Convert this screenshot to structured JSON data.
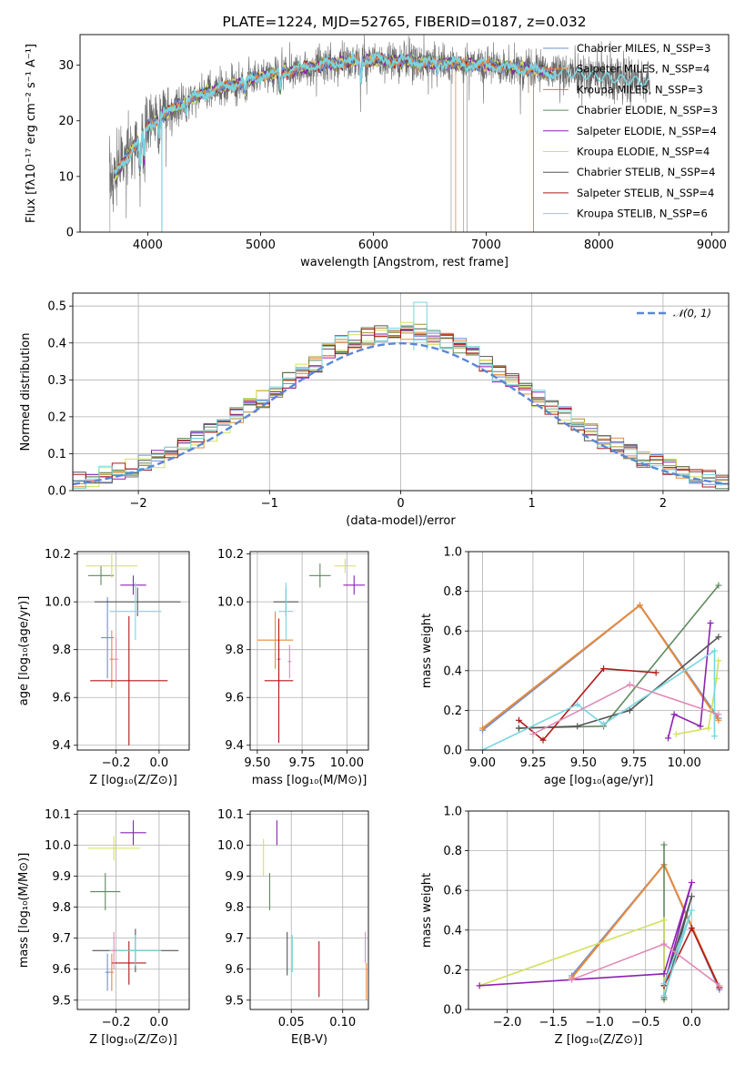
{
  "colors": [
    "#6f8fd6",
    "#e88a3a",
    "#a7912e",
    "#5e8a5e",
    "#8e22b0",
    "#d3e05b",
    "#555555",
    "#b21818",
    "#78d6e0",
    "#e08ab5"
  ],
  "chart_data": [
    {
      "id": "spectrum",
      "type": "line",
      "title": "PLATE=1224, MJD=52765, FIBERID=0187, z=0.032",
      "xlabel": "wavelength [Angstrom, rest frame]",
      "ylabel": "Flux [fλ10⁻¹⁷ erg cm⁻² s⁻¹ A⁻¹]",
      "xlim": [
        3400,
        9150
      ],
      "ylim": [
        0,
        35.5
      ],
      "xticks": [
        4000,
        5000,
        6000,
        7000,
        8000,
        9000
      ],
      "yticks": [
        0,
        10,
        20,
        30
      ],
      "legend_position": "upper-right",
      "grid": false,
      "continuum": {
        "x": [
          3660,
          3800,
          4000,
          4200,
          4500,
          5000,
          5500,
          6000,
          6500,
          7000,
          7500,
          7650
        ],
        "y": [
          9,
          13,
          19,
          22,
          25,
          28,
          30,
          31,
          30.5,
          30,
          29,
          28
        ]
      },
      "series": [
        {
          "name": "Chabrier MILES, N_SSP=3"
        },
        {
          "name": "Salpeter MILES, N_SSP=4"
        },
        {
          "name": "Kroupa MILES, N_SSP=3"
        },
        {
          "name": "Chabrier ELODIE, N_SSP=3"
        },
        {
          "name": "Salpeter ELODIE, N_SSP=4"
        },
        {
          "name": "Kroupa ELODIE, N_SSP=4"
        },
        {
          "name": "Chabrier STELIB, N_SSP=4"
        },
        {
          "name": "Salpeter STELIB, N_SSP=4"
        },
        {
          "name": "Kroupa STELIB, N_SSP=6"
        }
      ]
    },
    {
      "id": "residuals",
      "type": "histogram",
      "xlabel": "(data-model)/error",
      "ylabel": "Normed distribution",
      "xlim": [
        -2.5,
        2.5
      ],
      "ylim": [
        0,
        0.535
      ],
      "xticks": [
        -2,
        -1,
        0,
        1,
        2
      ],
      "yticks": [
        0.0,
        0.1,
        0.2,
        0.3,
        0.4,
        0.5
      ],
      "grid": true,
      "legend": {
        "label": "𝒩(0, 1)",
        "position": "upper-right"
      },
      "bin_width": 0.1
    },
    {
      "id": "age-vs-Z",
      "type": "errorbar",
      "xlabel": "Z [log₁₀(Z/Z⊙)]",
      "ylabel": "age  [log₁₀(age/yr)]",
      "xlim": [
        -0.38,
        0.14
      ],
      "ylim": [
        9.38,
        10.21
      ],
      "xticks": [
        -0.2,
        0.0
      ],
      "yticks": [
        9.4,
        9.6,
        9.8,
        10.0,
        10.2
      ],
      "points": [
        {
          "x": -0.24,
          "y": 9.85,
          "xerr": 0.03,
          "yerr": 0.17,
          "c": 0
        },
        {
          "x": -0.22,
          "y": 9.76,
          "xerr": 0.01,
          "yerr": 0.12,
          "c": 1
        },
        {
          "x": -0.27,
          "y": 10.11,
          "xerr": 0.06,
          "yerr": 0.04,
          "c": 3
        },
        {
          "x": -0.12,
          "y": 10.07,
          "xerr": 0.06,
          "yerr": 0.04,
          "c": 4
        },
        {
          "x": -0.22,
          "y": 10.15,
          "xerr": 0.12,
          "yerr": 0.05,
          "c": 5
        },
        {
          "x": -0.1,
          "y": 10.0,
          "xerr": 0.2,
          "yerr": 0.06,
          "c": 6
        },
        {
          "x": -0.14,
          "y": 9.67,
          "xerr": 0.18,
          "yerr": 0.27,
          "c": 7
        },
        {
          "x": -0.11,
          "y": 9.96,
          "xerr": 0.12,
          "yerr": 0.12,
          "c": 8
        },
        {
          "x": -0.2,
          "y": 9.76,
          "xerr": 0.01,
          "yerr": 0.09,
          "c": 9
        }
      ]
    },
    {
      "id": "age-vs-mass",
      "type": "errorbar",
      "xlabel": "mass [log₁₀(M/M⊙)]",
      "ylabel": "",
      "xlim": [
        9.46,
        10.12
      ],
      "ylim": [
        9.38,
        10.21
      ],
      "xticks": [
        9.5,
        9.75,
        10.0
      ],
      "yticks": [
        9.4,
        9.6,
        9.8,
        10.0,
        10.2
      ],
      "points": [
        {
          "x": 9.6,
          "y": 9.84,
          "xerr": 0.1,
          "yerr": 0.12,
          "c": 1
        },
        {
          "x": 9.62,
          "y": 9.76,
          "xerr": 0.01,
          "yerr": 0.12,
          "c": 0
        },
        {
          "x": 9.85,
          "y": 10.11,
          "xerr": 0.06,
          "yerr": 0.05,
          "c": 3
        },
        {
          "x": 10.04,
          "y": 10.07,
          "xerr": 0.06,
          "yerr": 0.04,
          "c": 4
        },
        {
          "x": 9.99,
          "y": 10.15,
          "xerr": 0.06,
          "yerr": 0.03,
          "c": 5
        },
        {
          "x": 9.66,
          "y": 10.0,
          "xerr": 0.07,
          "yerr": 0.06,
          "c": 6
        },
        {
          "x": 9.62,
          "y": 9.67,
          "xerr": 0.08,
          "yerr": 0.26,
          "c": 7
        },
        {
          "x": 9.66,
          "y": 9.96,
          "xerr": 0.04,
          "yerr": 0.12,
          "c": 8
        },
        {
          "x": 9.68,
          "y": 9.75,
          "xerr": 0.01,
          "yerr": 0.07,
          "c": 9
        }
      ]
    },
    {
      "id": "weights-vs-age",
      "type": "line",
      "xlabel": "age  [log₁₀(age/yr)]",
      "ylabel": "mass weight",
      "xlim": [
        8.93,
        10.22
      ],
      "ylim": [
        0,
        1.0
      ],
      "xticks": [
        9.0,
        9.25,
        9.5,
        9.75,
        10.0
      ],
      "yticks": [
        0.0,
        0.2,
        0.4,
        0.6,
        0.8,
        1.0
      ],
      "series": [
        {
          "c": 0,
          "x": [
            9.0,
            9.78,
            10.17
          ],
          "y": [
            0.1,
            0.73,
            0.16
          ]
        },
        {
          "c": 1,
          "x": [
            9.0,
            9.78,
            10.17
          ],
          "y": [
            0.11,
            0.73,
            0.15
          ]
        },
        {
          "c": 3,
          "x": [
            9.18,
            9.6,
            10.17
          ],
          "y": [
            0.11,
            0.12,
            0.83
          ]
        },
        {
          "c": 4,
          "x": [
            9.92,
            9.95,
            10.08,
            10.13
          ],
          "y": [
            0.06,
            0.18,
            0.12,
            0.64
          ]
        },
        {
          "c": 5,
          "x": [
            9.96,
            10.12,
            10.16,
            10.17
          ],
          "y": [
            0.08,
            0.11,
            0.36,
            0.45
          ]
        },
        {
          "c": 6,
          "x": [
            9.18,
            9.47,
            9.73,
            10.17
          ],
          "y": [
            0.11,
            0.12,
            0.2,
            0.57
          ]
        },
        {
          "c": 7,
          "x": [
            9.18,
            9.3,
            9.6,
            9.86
          ],
          "y": [
            0.15,
            0.05,
            0.41,
            0.39
          ]
        },
        {
          "c": 8,
          "x": [
            9.0,
            9.47,
            9.6,
            10.15,
            10.15
          ],
          "y": [
            0.0,
            0.23,
            0.13,
            0.5,
            0.07
          ]
        },
        {
          "c": 9,
          "x": [
            9.25,
            9.73,
            10.17
          ],
          "y": [
            0.08,
            0.33,
            0.18
          ]
        }
      ]
    },
    {
      "id": "mass-vs-Z",
      "type": "errorbar",
      "xlabel": "Z [log₁₀(Z/Z⊙)]",
      "ylabel": "mass [log₁₀(M/M⊙)]",
      "xlim": [
        -0.38,
        0.14
      ],
      "ylim": [
        9.47,
        10.11
      ],
      "xticks": [
        -0.2,
        0.0
      ],
      "yticks": [
        9.5,
        9.6,
        9.7,
        9.8,
        9.9,
        10.0,
        10.1
      ],
      "points": [
        {
          "x": -0.24,
          "y": 9.59,
          "xerr": 0.01,
          "yerr": 0.06,
          "c": 0
        },
        {
          "x": -0.22,
          "y": 9.59,
          "xerr": 0.01,
          "yerr": 0.06,
          "c": 1
        },
        {
          "x": -0.25,
          "y": 9.85,
          "xerr": 0.07,
          "yerr": 0.06,
          "c": 3
        },
        {
          "x": -0.12,
          "y": 10.04,
          "xerr": 0.06,
          "yerr": 0.04,
          "c": 4
        },
        {
          "x": -0.21,
          "y": 9.99,
          "xerr": 0.12,
          "yerr": 0.04,
          "c": 5
        },
        {
          "x": -0.11,
          "y": 9.66,
          "xerr": 0.2,
          "yerr": 0.07,
          "c": 6
        },
        {
          "x": -0.14,
          "y": 9.62,
          "xerr": 0.08,
          "yerr": 0.07,
          "c": 7
        },
        {
          "x": -0.11,
          "y": 9.66,
          "xerr": 0.12,
          "yerr": 0.05,
          "c": 8
        },
        {
          "x": -0.21,
          "y": 9.66,
          "xerr": 0.01,
          "yerr": 0.06,
          "c": 9
        }
      ]
    },
    {
      "id": "mass-vs-ebv",
      "type": "errorbar",
      "xlabel": "E(B-V)",
      "ylabel": "",
      "xlim": [
        0.01,
        0.125
      ],
      "ylim": [
        9.47,
        10.11
      ],
      "xticks": [
        0.05,
        0.1
      ],
      "yticks": [
        9.5,
        9.6,
        9.7,
        9.8,
        9.9,
        10.0,
        10.1
      ],
      "points": [
        {
          "x": 0.123,
          "y": 9.56,
          "xerr": 0.0,
          "yerr": 0.06,
          "c": 1
        },
        {
          "x": 0.122,
          "y": 9.67,
          "xerr": 0.0,
          "yerr": 0.05,
          "c": 9
        },
        {
          "x": 0.029,
          "y": 9.85,
          "xerr": 0.0,
          "yerr": 0.06,
          "c": 3
        },
        {
          "x": 0.036,
          "y": 10.04,
          "xerr": 0.0,
          "yerr": 0.04,
          "c": 4
        },
        {
          "x": 0.023,
          "y": 9.96,
          "xerr": 0.0,
          "yerr": 0.06,
          "c": 5
        },
        {
          "x": 0.046,
          "y": 9.65,
          "xerr": 0.0,
          "yerr": 0.07,
          "c": 6
        },
        {
          "x": 0.077,
          "y": 9.6,
          "xerr": 0.0,
          "yerr": 0.09,
          "c": 7
        },
        {
          "x": 0.051,
          "y": 9.65,
          "xerr": 0.0,
          "yerr": 0.06,
          "c": 8
        }
      ]
    },
    {
      "id": "weights-vs-Z",
      "type": "line",
      "xlabel": "Z [log₁₀(Z/Z⊙)]",
      "ylabel": "mass weight",
      "xlim": [
        -2.42,
        0.4
      ],
      "ylim": [
        0,
        1.0
      ],
      "xticks": [
        -2.0,
        -1.5,
        -1.0,
        -0.5,
        0.0
      ],
      "yticks": [
        0.0,
        0.2,
        0.4,
        0.6,
        0.8,
        1.0
      ],
      "series": [
        {
          "c": 0,
          "x": [
            -1.3,
            -0.3,
            0.3
          ],
          "y": [
            0.17,
            0.73,
            0.1
          ]
        },
        {
          "c": 1,
          "x": [
            -1.3,
            -0.3,
            0.3
          ],
          "y": [
            0.16,
            0.73,
            0.11
          ]
        },
        {
          "c": 3,
          "x": [
            -0.3,
            -0.3,
            -0.3
          ],
          "y": [
            0.05,
            0.83,
            0.12
          ]
        },
        {
          "c": 5,
          "x": [
            -2.3,
            -0.3,
            -0.3
          ],
          "y": [
            0.12,
            0.45,
            0.06
          ]
        },
        {
          "c": 4,
          "x": [
            -2.3,
            -0.3,
            0.0,
            -0.3
          ],
          "y": [
            0.12,
            0.18,
            0.64,
            0.12
          ]
        },
        {
          "c": 6,
          "x": [
            -0.3,
            0.0,
            -0.3
          ],
          "y": [
            0.12,
            0.57,
            0.06
          ]
        },
        {
          "c": 7,
          "x": [
            -0.3,
            0.0,
            0.3
          ],
          "y": [
            0.12,
            0.41,
            0.11
          ]
        },
        {
          "c": 8,
          "x": [
            -0.3,
            0.0,
            -0.3
          ],
          "y": [
            0.07,
            0.5,
            0.13
          ]
        },
        {
          "c": 9,
          "x": [
            -1.3,
            -0.3,
            0.3
          ],
          "y": [
            0.15,
            0.33,
            0.12
          ]
        }
      ]
    }
  ]
}
